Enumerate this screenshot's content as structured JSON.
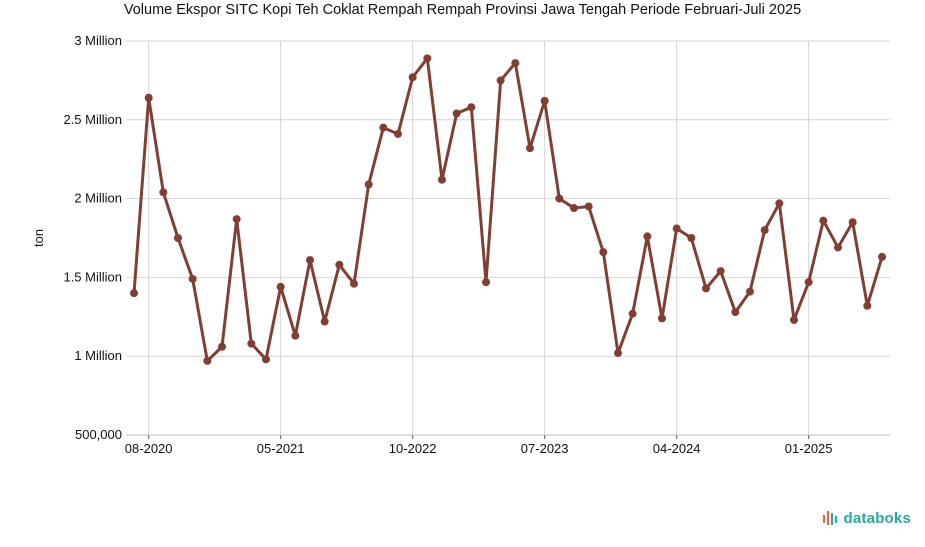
{
  "chart_data": {
    "type": "line",
    "title": "Volume Ekspor SITC Kopi Teh Coklat Rempah Rempah Provinsi Jawa Tengah Periode Februari-Juli 2025",
    "ylabel": "ton",
    "xlabel": "",
    "ylim": [
      500000,
      3000000
    ],
    "yticks": [
      500000,
      1000000,
      1500000,
      2000000,
      2500000,
      3000000
    ],
    "ytick_labels": [
      "500,000",
      "1 Million",
      "1.5 Million",
      "2 Million",
      "2.5 Million",
      "3 Million"
    ],
    "xticks": [
      "08-2020",
      "05-2021",
      "10-2022",
      "07-2023",
      "04-2024",
      "01-2025"
    ],
    "grid": true,
    "series": [
      {
        "name": "",
        "color": "#7f3f35",
        "values": [
          1400000,
          2640000,
          2040000,
          1750000,
          1490000,
          970000,
          1060000,
          1870000,
          1080000,
          980000,
          1440000,
          1130000,
          1610000,
          1220000,
          1580000,
          1460000,
          2090000,
          2450000,
          2410000,
          2770000,
          2890000,
          2120000,
          2540000,
          2580000,
          1470000,
          2750000,
          2860000,
          2320000,
          2620000,
          2000000,
          1940000,
          1950000,
          1660000,
          1020000,
          1270000,
          1760000,
          1240000,
          1810000,
          1750000,
          1430000,
          1540000,
          1280000,
          1410000,
          1800000,
          1970000,
          1230000,
          1470000,
          1860000,
          1690000,
          1850000,
          1320000,
          1630000
        ]
      }
    ]
  },
  "branding": {
    "text": "databoks",
    "color": "#2aa7a3",
    "icon": "databoks-logo-icon"
  }
}
